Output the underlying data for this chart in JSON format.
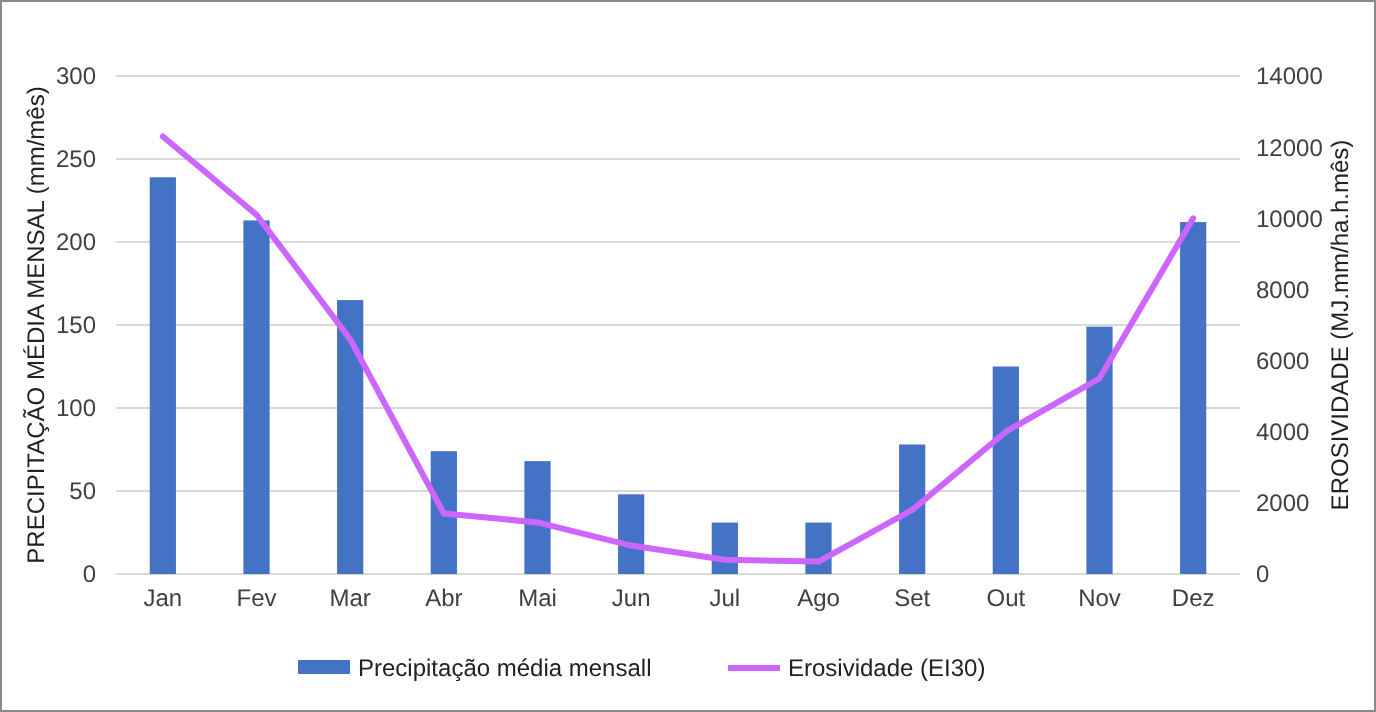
{
  "chart_data": {
    "type": "bar",
    "categories": [
      "Jan",
      "Fev",
      "Mar",
      "Abr",
      "Mai",
      "Jun",
      "Jul",
      "Ago",
      "Set",
      "Out",
      "Nov",
      "Dez"
    ],
    "ylabel": "PRECIPITAÇÃO MÉDIA MENSAL (mm/mês)",
    "y2label": "EROSIVIDADE (MJ.mm/ha.h.mês)",
    "ylim": [
      0,
      300
    ],
    "yticks": [
      0,
      50,
      100,
      150,
      200,
      250,
      300
    ],
    "y2lim": [
      0,
      14000
    ],
    "y2ticks": [
      0,
      2000,
      4000,
      6000,
      8000,
      10000,
      12000,
      14000
    ],
    "grid": "y",
    "legend": "bottom",
    "series": [
      {
        "name": "Precipitação média mensall",
        "color": "#4472c4",
        "values": [
          239,
          213,
          165,
          74,
          68,
          48,
          31,
          31,
          78,
          125,
          149,
          212
        ]
      },
      {
        "name": "Erosividade (EI30)",
        "type": "line",
        "axis": "y2",
        "color": "#cc66ff",
        "values": [
          12300,
          10100,
          6600,
          1700,
          1450,
          800,
          400,
          350,
          1800,
          4000,
          5500,
          10000
        ]
      }
    ]
  }
}
